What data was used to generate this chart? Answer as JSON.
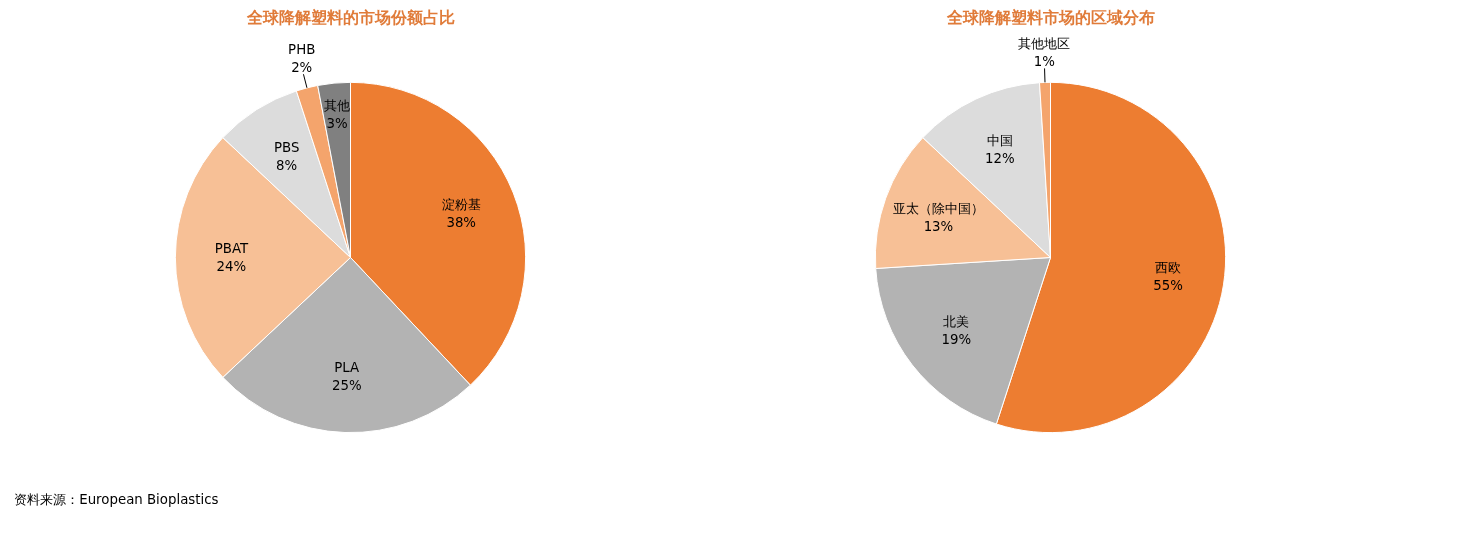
{
  "chart_data": [
    {
      "type": "pie",
      "title": "全球降解塑料的市场份额占比",
      "categories": [
        "淀粉基",
        "PLA",
        "PBAT",
        "PBS",
        "PHB",
        "其他"
      ],
      "values": [
        38,
        25,
        24,
        8,
        2,
        3
      ],
      "value_labels": [
        "38%",
        "25%",
        "24%",
        "8%",
        "2%",
        "3%"
      ],
      "colors": [
        "#ed7d31",
        "#b3b3b3",
        "#f7c096",
        "#dcdcdc",
        "#f4a46c",
        "#808080"
      ],
      "annotations": [
        "资料来源：European Bioplastics"
      ]
    },
    {
      "type": "pie",
      "title": "全球降解塑料市场的区域分布",
      "categories": [
        "西欧",
        "北美",
        "亚太（除中国）",
        "中国",
        "其他地区"
      ],
      "values": [
        55,
        19,
        13,
        12,
        1
      ],
      "value_labels": [
        "55%",
        "19%",
        "13%",
        "12%",
        "1%"
      ],
      "colors": [
        "#ed7d31",
        "#b3b3b3",
        "#f7c096",
        "#dcdcdc",
        "#f4a46c"
      ]
    }
  ]
}
